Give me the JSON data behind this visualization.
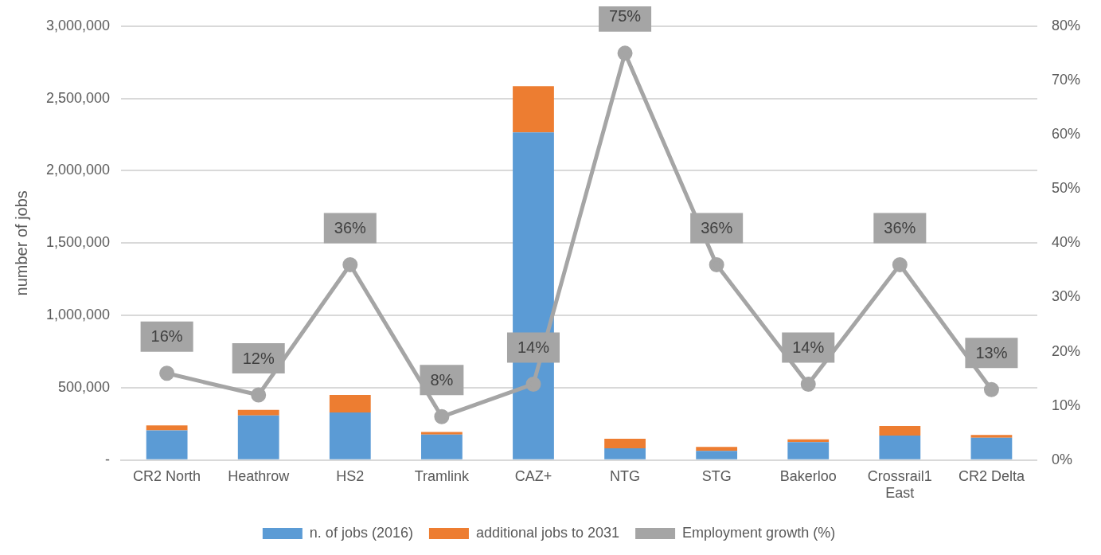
{
  "chart_data": {
    "type": "bar",
    "stacked": true,
    "ylabel": "number of jobs",
    "categories": [
      "CR2 North",
      "Heathrow",
      "HS2",
      "Tramlink",
      "CAZ+",
      "NTG",
      "STG",
      "Bakerloo",
      "Crossrail1 East",
      "CR2 Delta"
    ],
    "series": [
      {
        "name": "n. of jobs (2016)",
        "color": "#5b9bd5",
        "values": [
          206000,
          309000,
          329000,
          177000,
          2265000,
          81000,
          63000,
          124000,
          170000,
          155000
        ]
      },
      {
        "name": "additional jobs to 2031",
        "color": "#ed7d31",
        "values": [
          34000,
          38000,
          121000,
          17000,
          320000,
          66000,
          28000,
          19000,
          66000,
          19000
        ]
      },
      {
        "name": "Employment growth (%)",
        "type": "line",
        "axis": "y2",
        "color": "#a5a5a5",
        "marker": "circle",
        "values": [
          16,
          12,
          36,
          8,
          14,
          75,
          36,
          14,
          36,
          13
        ],
        "value_labels": [
          "16%",
          "12%",
          "36%",
          "8%",
          "14%",
          "75%",
          "36%",
          "14%",
          "36%",
          "13%"
        ]
      }
    ],
    "ylim": [
      0,
      3000000
    ],
    "yticks": [
      {
        "value": 0,
        "label": "-"
      },
      {
        "value": 500000,
        "label": "500,000"
      },
      {
        "value": 1000000,
        "label": "1,000,000"
      },
      {
        "value": 1500000,
        "label": "1,500,000"
      },
      {
        "value": 2000000,
        "label": "2,000,000"
      },
      {
        "value": 2500000,
        "label": "2,500,000"
      },
      {
        "value": 3000000,
        "label": "3,000,000"
      }
    ],
    "y2lim": [
      0,
      80
    ],
    "y2ticks": [
      {
        "value": 0,
        "label": "0%"
      },
      {
        "value": 10,
        "label": "10%"
      },
      {
        "value": 20,
        "label": "20%"
      },
      {
        "value": 30,
        "label": "30%"
      },
      {
        "value": 40,
        "label": "40%"
      },
      {
        "value": 50,
        "label": "50%"
      },
      {
        "value": 60,
        "label": "60%"
      },
      {
        "value": 70,
        "label": "70%"
      },
      {
        "value": 80,
        "label": "80%"
      }
    ],
    "grid": "y",
    "legend": "bottom"
  }
}
